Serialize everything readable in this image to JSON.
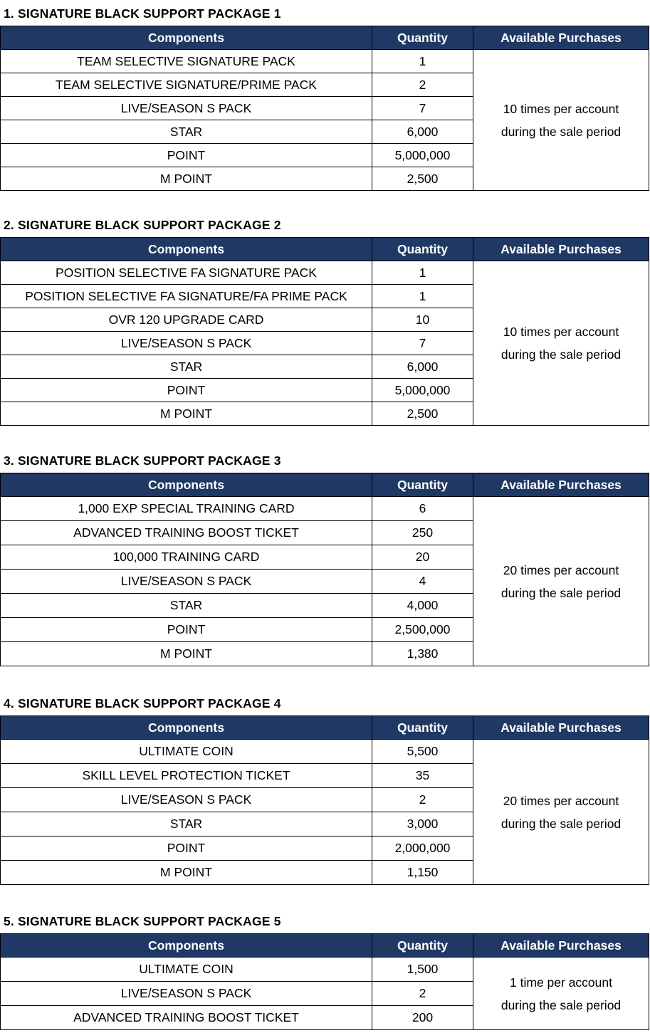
{
  "headers": {
    "components": "Components",
    "quantity": "Quantity",
    "available": "Available Purchases"
  },
  "packages": [
    {
      "title": "1. SIGNATURE BLACK SUPPORT PACKAGE 1",
      "available_line1": "10 times per account",
      "available_line2": "during the sale period",
      "items": [
        {
          "component": "TEAM SELECTIVE SIGNATURE PACK",
          "quantity": "1"
        },
        {
          "component": "TEAM SELECTIVE SIGNATURE/PRIME PACK",
          "quantity": "2"
        },
        {
          "component": "LIVE/SEASON S PACK",
          "quantity": "7"
        },
        {
          "component": "STAR",
          "quantity": "6,000"
        },
        {
          "component": "POINT",
          "quantity": "5,000,000"
        },
        {
          "component": "M POINT",
          "quantity": "2,500"
        }
      ]
    },
    {
      "title": "2. SIGNATURE BLACK SUPPORT PACKAGE 2",
      "available_line1": "10 times per account",
      "available_line2": "during the sale period",
      "items": [
        {
          "component": "POSITION SELECTIVE FA SIGNATURE PACK",
          "quantity": "1"
        },
        {
          "component": "POSITION SELECTIVE FA SIGNATURE/FA PRIME PACK",
          "quantity": "1"
        },
        {
          "component": "OVR 120 UPGRADE CARD",
          "quantity": "10"
        },
        {
          "component": "LIVE/SEASON S PACK",
          "quantity": "7"
        },
        {
          "component": "STAR",
          "quantity": "6,000"
        },
        {
          "component": "POINT",
          "quantity": "5,000,000"
        },
        {
          "component": "M POINT",
          "quantity": "2,500"
        }
      ]
    },
    {
      "title": "3. SIGNATURE BLACK SUPPORT PACKAGE 3",
      "available_line1": "20 times per account",
      "available_line2": "during the sale period",
      "items": [
        {
          "component": "1,000 EXP SPECIAL TRAINING CARD",
          "quantity": "6"
        },
        {
          "component": "ADVANCED TRAINING BOOST TICKET",
          "quantity": "250"
        },
        {
          "component": "100,000 TRAINING CARD",
          "quantity": "20"
        },
        {
          "component": "LIVE/SEASON S PACK",
          "quantity": "4"
        },
        {
          "component": "STAR",
          "quantity": "4,000"
        },
        {
          "component": "POINT",
          "quantity": "2,500,000"
        },
        {
          "component": "M POINT",
          "quantity": "1,380"
        }
      ]
    },
    {
      "title": "4. SIGNATURE BLACK SUPPORT PACKAGE 4",
      "available_line1": "20 times per account",
      "available_line2": "during the sale period",
      "items": [
        {
          "component": "ULTIMATE COIN",
          "quantity": "5,500"
        },
        {
          "component": "SKILL LEVEL PROTECTION TICKET",
          "quantity": "35"
        },
        {
          "component": "LIVE/SEASON S PACK",
          "quantity": "2"
        },
        {
          "component": "STAR",
          "quantity": "3,000"
        },
        {
          "component": "POINT",
          "quantity": "2,000,000"
        },
        {
          "component": "M POINT",
          "quantity": "1,150"
        }
      ]
    },
    {
      "title": "5. SIGNATURE BLACK SUPPORT PACKAGE 5",
      "available_line1": "1 time per account",
      "available_line2": "during the sale period",
      "items": [
        {
          "component": "ULTIMATE COIN",
          "quantity": "1,500"
        },
        {
          "component": "LIVE/SEASON S PACK",
          "quantity": "2"
        },
        {
          "component": "ADVANCED TRAINING BOOST TICKET",
          "quantity": "200"
        }
      ]
    }
  ]
}
